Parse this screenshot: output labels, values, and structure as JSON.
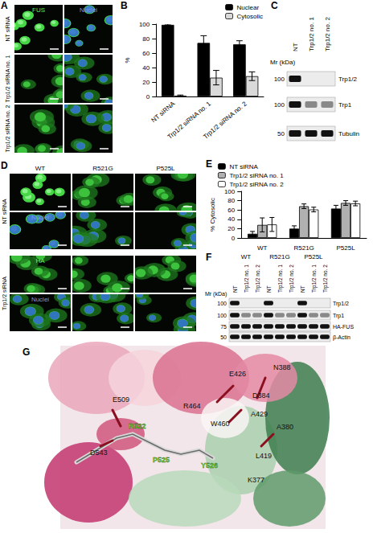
{
  "letters": [
    "A",
    "B",
    "C",
    "D",
    "E",
    "F",
    "G"
  ],
  "panels": {
    "A": {
      "channels": [
        "FUS",
        "Nuclei"
      ],
      "rows": [
        "NT siRNA",
        "Trp1/2 siRNA no. 1",
        "Trp1/2 siRNA no. 2"
      ]
    },
    "C": {
      "mr_label": "Mr (kDa)",
      "lanes": [
        "NT",
        "Trp1/2 no. 1",
        "Trp1/2 no. 2"
      ],
      "rows": [
        {
          "label": "Trp1/2",
          "mr": 100,
          "bands": [
            1,
            0,
            0
          ]
        },
        {
          "label": "Trp1",
          "mr": 100,
          "bands": [
            1,
            0.45,
            0.45
          ]
        },
        {
          "label": "Tubulin",
          "mr": 50,
          "bands": [
            1,
            1,
            1
          ]
        }
      ]
    },
    "D": {
      "columns": [
        "WT",
        "R521G",
        "P525L"
      ],
      "groups": [
        {
          "label": "NT siRNA",
          "channels": [
            "HA",
            "Nuclei"
          ]
        },
        {
          "label": "Trp1/2 siRNA",
          "channels": [
            "HA",
            "Nuclei"
          ]
        }
      ]
    },
    "F": {
      "mr_label": "Mr (kDa)",
      "groups": [
        "WT",
        "R521G",
        "P525L"
      ],
      "lanes": [
        "NT",
        "Trp1/2 no. 1",
        "Trp1/2 no. 2"
      ],
      "rows": [
        {
          "label": "Trp1/2",
          "mr": 100,
          "bands": [
            1,
            0,
            0,
            1,
            0,
            0,
            1,
            0,
            0
          ]
        },
        {
          "label": "Trp1",
          "mr": 100,
          "bands": [
            1,
            0.45,
            0.45,
            1,
            0.45,
            0.45,
            1,
            0.45,
            0.45
          ]
        },
        {
          "label": "HA-FUS",
          "mr": 75,
          "bands": [
            1,
            1,
            1,
            1,
            1,
            1,
            1,
            1,
            1
          ]
        },
        {
          "label": "β-Actin",
          "mr": 50,
          "bands": [
            1,
            1,
            1,
            1,
            1,
            1,
            1,
            1,
            1
          ]
        }
      ]
    },
    "G": {
      "residues": [
        {
          "label": "E509",
          "highlight": false
        },
        {
          "label": "R522",
          "highlight": true
        },
        {
          "label": "D543",
          "highlight": false
        },
        {
          "label": "P525",
          "highlight": true
        },
        {
          "label": "Y526",
          "highlight": true
        },
        {
          "label": "R464",
          "highlight": false
        },
        {
          "label": "W460",
          "highlight": false
        },
        {
          "label": "E426",
          "highlight": false
        },
        {
          "label": "N388",
          "highlight": false
        },
        {
          "label": "D384",
          "highlight": false
        },
        {
          "label": "A429",
          "highlight": false
        },
        {
          "label": "A380",
          "highlight": false
        },
        {
          "label": "L419",
          "highlight": false
        },
        {
          "label": "K377",
          "highlight": false
        }
      ]
    }
  },
  "chart_data": [
    {
      "type": "bar",
      "categories": [
        "NT siRNA",
        "Trp1/2 siRNA no. 1",
        "Trp1/2 siRNA no. 2"
      ],
      "series": [
        {
          "name": "Nuclear",
          "color": "#000000",
          "values": [
            99,
            74,
            72
          ],
          "errors": [
            1,
            10,
            5
          ]
        },
        {
          "name": "Cytosolic",
          "color": "#d9d9d9",
          "values": [
            1,
            26,
            28
          ],
          "errors": [
            1,
            10,
            6
          ]
        }
      ],
      "ylabel": "%",
      "ylim": [
        0,
        100
      ],
      "yticks": [
        0,
        20,
        40,
        60,
        80,
        100
      ],
      "legend": "top-right",
      "grid": false
    },
    {
      "type": "bar",
      "categories": [
        "WT",
        "R521G",
        "P525L"
      ],
      "series": [
        {
          "name": "NT siRNA",
          "color": "#000000",
          "values": [
            9,
            20,
            63
          ],
          "errors": [
            5,
            6,
            7
          ]
        },
        {
          "name": "Trp1/2 siRNA no. 1",
          "color": "#b0b0b0",
          "values": [
            28,
            68,
            75
          ],
          "errors": [
            15,
            5,
            5
          ]
        },
        {
          "name": "Trp1/2 siRNA no. 2",
          "color": "#ffffff",
          "values": [
            29,
            61,
            74
          ],
          "errors": [
            15,
            5,
            5
          ]
        }
      ],
      "ylabel": "% Cytosolic",
      "ylim": [
        0,
        100
      ],
      "yticks": [
        0,
        20,
        40,
        60,
        80,
        100
      ],
      "legend": "top-left",
      "grid": false
    }
  ]
}
